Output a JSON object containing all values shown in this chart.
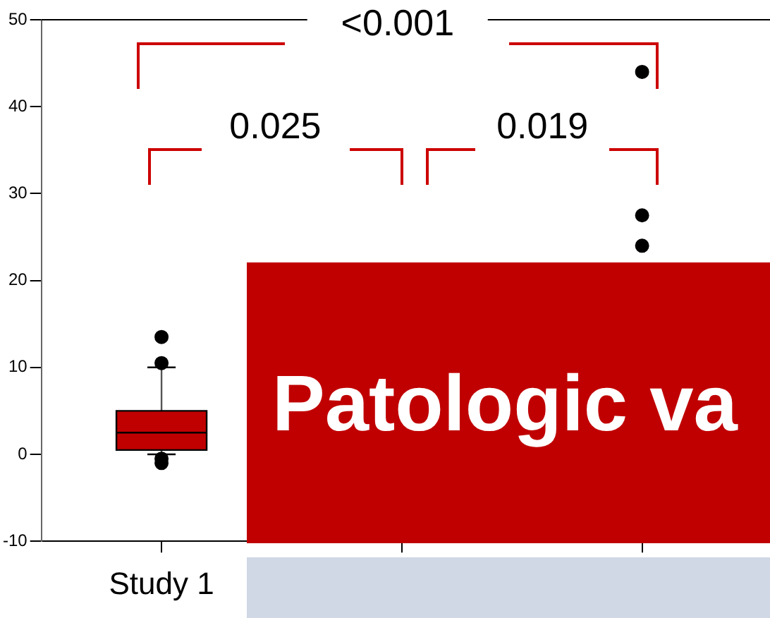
{
  "chart_data": {
    "type": "box",
    "categories": [
      "Study 1",
      null,
      null
    ],
    "boxes": [
      {
        "low": 0,
        "q1": 0.5,
        "median": 2.5,
        "q3": 5,
        "high": 10,
        "outliers": [
          13.5,
          10.5,
          -0.5,
          -1
        ]
      },
      null,
      null
    ],
    "series": [
      {
        "type": "scatter",
        "color": "#000000",
        "values": [
          null,
          null,
          44
        ]
      },
      {
        "type": "scatter",
        "color": "#000000",
        "values": [
          null,
          null,
          27.5
        ]
      },
      {
        "type": "scatter",
        "color": "#000000",
        "values": [
          null,
          null,
          24
        ]
      }
    ],
    "color": "#c00000",
    "ylim": [
      -10,
      50
    ],
    "yticks": [
      -10,
      0,
      10,
      20,
      30,
      40,
      50
    ],
    "grid": false,
    "legend": false,
    "annotations": [
      "<0.001",
      "0.025",
      "0.019",
      "Patologic va"
    ]
  }
}
